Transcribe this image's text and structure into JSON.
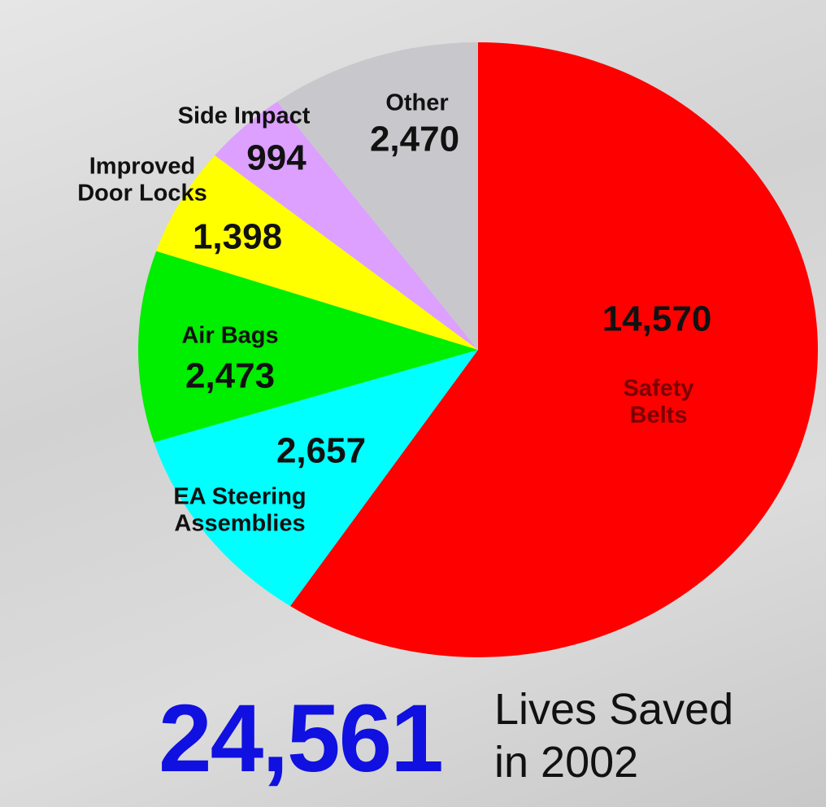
{
  "chart_data": {
    "type": "pie",
    "categories": [
      "Safety Belts",
      "EA Steering Assemblies",
      "Air Bags",
      "Improved Door Locks",
      "Side Impact",
      "Other"
    ],
    "values": [
      14570,
      2657,
      2473,
      1398,
      994,
      2470
    ],
    "value_labels": [
      "14,570",
      "2,657",
      "2,473",
      "1,398",
      "994",
      "2,470"
    ],
    "colors": [
      "#ff0000",
      "#00ffff",
      "#00ee00",
      "#ffff00",
      "#dda0ff",
      "#c8c8cc"
    ],
    "total_label": "24,561",
    "caption": "Lives Saved in 2002"
  }
}
